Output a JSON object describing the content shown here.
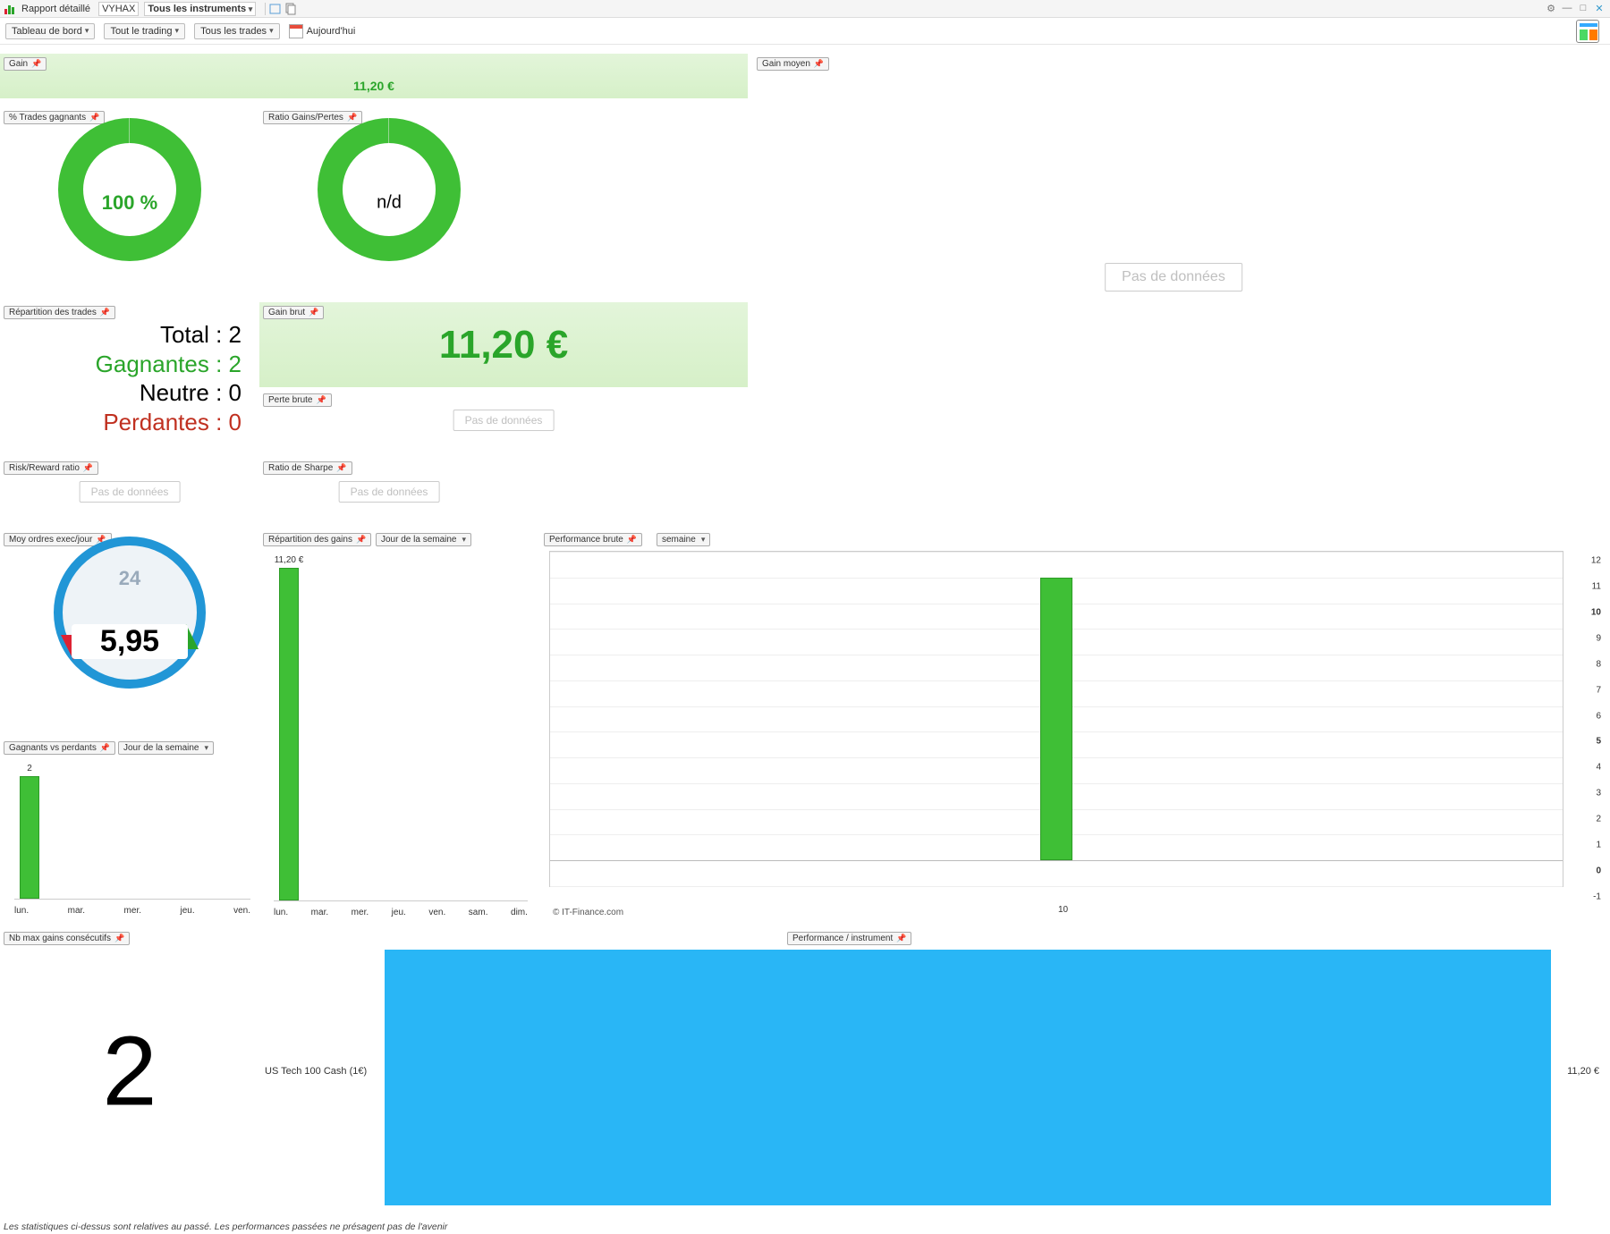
{
  "titlebar": {
    "title": "Rapport détaillé",
    "account": "VYHAX",
    "instruments": "Tous les instruments",
    "doc_icon_color": "#5a9ed6"
  },
  "toolbar": {
    "dashboard": "Tableau de bord",
    "trading": "Tout le trading",
    "trades": "Tous les trades",
    "today": "Aujourd'hui"
  },
  "widgets": {
    "gain": {
      "label": "Gain",
      "value": "11,20 €",
      "bg_from": "#e3f5da",
      "bg_to": "#d6f0c8"
    },
    "gain_moyen": {
      "label": "Gain moyen"
    },
    "pct_gagnants": {
      "label": "% Trades gagnants",
      "center": "100 %",
      "color": "#3fbf36"
    },
    "ratio_gp": {
      "label": "Ratio Gains/Pertes",
      "center": "n/d",
      "color": "#3fbf36"
    },
    "nodata": "Pas de données",
    "repartition_trades": {
      "label": "Répartition des trades",
      "total_lbl": "Total : ",
      "total_val": "2",
      "gag_lbl": "Gagnantes : ",
      "gag_val": "2",
      "neutre_lbl": "Neutre : ",
      "neutre_val": "0",
      "perd_lbl": "Perdantes : ",
      "perd_val": "0"
    },
    "gain_brut": {
      "label": "Gain brut",
      "value": "11,20 €"
    },
    "perte_brute": {
      "label": "Perte brute"
    },
    "risk_reward": {
      "label": "Risk/Reward ratio"
    },
    "sharpe": {
      "label": "Ratio de Sharpe"
    },
    "avg_orders": {
      "label": "Moy ordres exec/jour",
      "top24": "24",
      "value": "5,95"
    },
    "rep_gains": {
      "label": "Répartition des gains",
      "sub": "Jour de la semaine",
      "toplabel": "11,20 €",
      "days": [
        "lun.",
        "mar.",
        "mer.",
        "jeu.",
        "ven.",
        "sam.",
        "dim."
      ],
      "values": [
        11.2,
        0,
        0,
        0,
        0,
        0,
        0
      ],
      "ymax": 11.2,
      "bar_color": "#3fbf36"
    },
    "winners_losers": {
      "label": "Gagnants vs perdants",
      "sub": "Jour de la semaine",
      "toplabel": "2",
      "days": [
        "lun.",
        "mar.",
        "mer.",
        "jeu.",
        "ven."
      ],
      "values": [
        2,
        0,
        0,
        0,
        0
      ],
      "ymax": 2,
      "bar_color": "#3fbf36"
    },
    "perf_brute": {
      "label": "Performance brute",
      "sub": "semaine",
      "copyright": "© IT-Finance.com",
      "ylim": [
        -1,
        12
      ],
      "ytick_step": 1,
      "bold_ticks": [
        0,
        5,
        10
      ],
      "bars": [
        {
          "x": 10,
          "y": 11
        }
      ],
      "bar_color": "#3fbf36",
      "grid_color": "#eeeeee",
      "border_color": "#cccccc"
    },
    "max_consecutifs": {
      "label": "Nb max gains consécutifs",
      "value": "2"
    },
    "perf_instrument": {
      "label": "Performance / instrument",
      "instrument": "US Tech 100 Cash (1€)",
      "value_label": "11,20 €",
      "bar_color": "#29b6f6"
    }
  },
  "footer": {
    "disclaimer": "Les statistiques ci-dessus sont relatives au passé. Les performances passées ne présagent pas de l'avenir"
  }
}
